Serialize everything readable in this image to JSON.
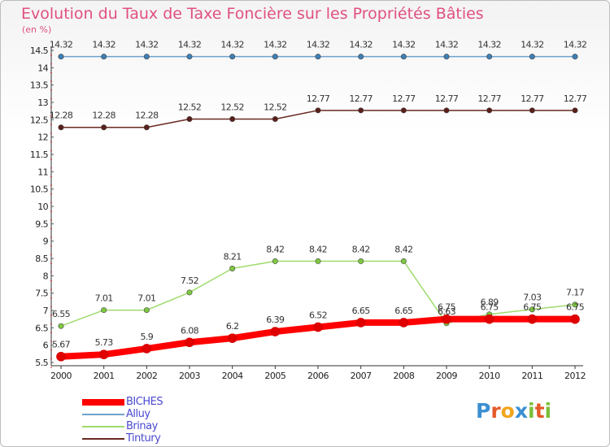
{
  "title": "Evolution du Taux de Taxe Foncière sur les Propriétés Bâties",
  "unit_label": "(en %)",
  "brand": {
    "letters": [
      "P",
      "r",
      "o",
      "x",
      "i",
      "t",
      "i"
    ],
    "colors": [
      "#3b8fd1",
      "#e35a2a",
      "#f2a51c",
      "#3b8fd1",
      "#7bbf3a",
      "#e35a2a",
      "#7bbf3a"
    ]
  },
  "chart_data": {
    "type": "line",
    "title": "Evolution du Taux de Taxe Foncière sur les Propriétés Bâties",
    "ylabel": "(en %)",
    "xlabel": "",
    "ylim": [
      5.5,
      14.5
    ],
    "y_ticks": [
      "5.5",
      "6",
      "6.5",
      "7",
      "7.5",
      "8",
      "8.5",
      "9",
      "9.5",
      "10",
      "10.5",
      "11",
      "11.5",
      "12",
      "12.5",
      "13",
      "13.5",
      "14",
      "14.5"
    ],
    "categories": [
      "2000",
      "2001",
      "2002",
      "2003",
      "2004",
      "2005",
      "2006",
      "2007",
      "2008",
      "2009",
      "2010",
      "2011",
      "2012"
    ],
    "grid": false,
    "series": [
      {
        "name": "Alluy",
        "color": "#6fa2cd",
        "width": 1.5,
        "marker": "#3f7fb4",
        "values": [
          14.32,
          14.32,
          14.32,
          14.32,
          14.32,
          14.32,
          14.32,
          14.32,
          14.32,
          14.32,
          14.32,
          14.32,
          14.32
        ],
        "labels": [
          "14.32",
          "14.32",
          "14.32",
          "14.32",
          "14.32",
          "14.32",
          "14.32",
          "14.32",
          "14.32",
          "14.32",
          "14.32",
          "14.32",
          "14.32"
        ]
      },
      {
        "name": "Tintury",
        "color": "#6a2a22",
        "width": 1.5,
        "marker": "#5a1f1a",
        "values": [
          12.28,
          12.28,
          12.28,
          12.52,
          12.52,
          12.52,
          12.77,
          12.77,
          12.77,
          12.77,
          12.77,
          12.77,
          12.77
        ],
        "labels": [
          "12.28",
          "12.28",
          "12.28",
          "12.52",
          "12.52",
          "12.52",
          "12.77",
          "12.77",
          "12.77",
          "12.77",
          "12.77",
          "12.77",
          "12.77"
        ]
      },
      {
        "name": "Brinay",
        "color": "#9fdb6d",
        "width": 1.5,
        "marker": "#7fc840",
        "values": [
          6.55,
          7.01,
          7.01,
          7.52,
          8.21,
          8.42,
          8.42,
          8.42,
          8.42,
          6.63,
          6.89,
          7.03,
          7.17
        ],
        "labels": [
          "6.55",
          "7.01",
          "7.01",
          "7.52",
          "8.21",
          "8.42",
          "8.42",
          "8.42",
          "8.42",
          "6.63",
          "6.89",
          "7.03",
          "7.17"
        ]
      },
      {
        "name": "BICHES",
        "color": "#ff0000",
        "width": 8,
        "marker": "#e00000",
        "values": [
          5.67,
          5.73,
          5.9,
          6.08,
          6.2,
          6.39,
          6.52,
          6.65,
          6.65,
          6.75,
          6.75,
          6.75,
          6.75
        ],
        "labels": [
          "5.67",
          "5.73",
          "5.9",
          "6.08",
          "6.2",
          "6.39",
          "6.52",
          "6.65",
          "6.65",
          "6.75",
          "6.75",
          "6.75",
          "6.75"
        ]
      }
    ],
    "legend": [
      {
        "name": "BICHES",
        "color": "#ff0000",
        "thick": true
      },
      {
        "name": "Alluy",
        "color": "#6fa2cd",
        "thick": false
      },
      {
        "name": "Brinay",
        "color": "#9fdb6d",
        "thick": false
      },
      {
        "name": "Tintury",
        "color": "#6a2a22",
        "thick": false
      }
    ],
    "legend_position": "bottom-left"
  }
}
